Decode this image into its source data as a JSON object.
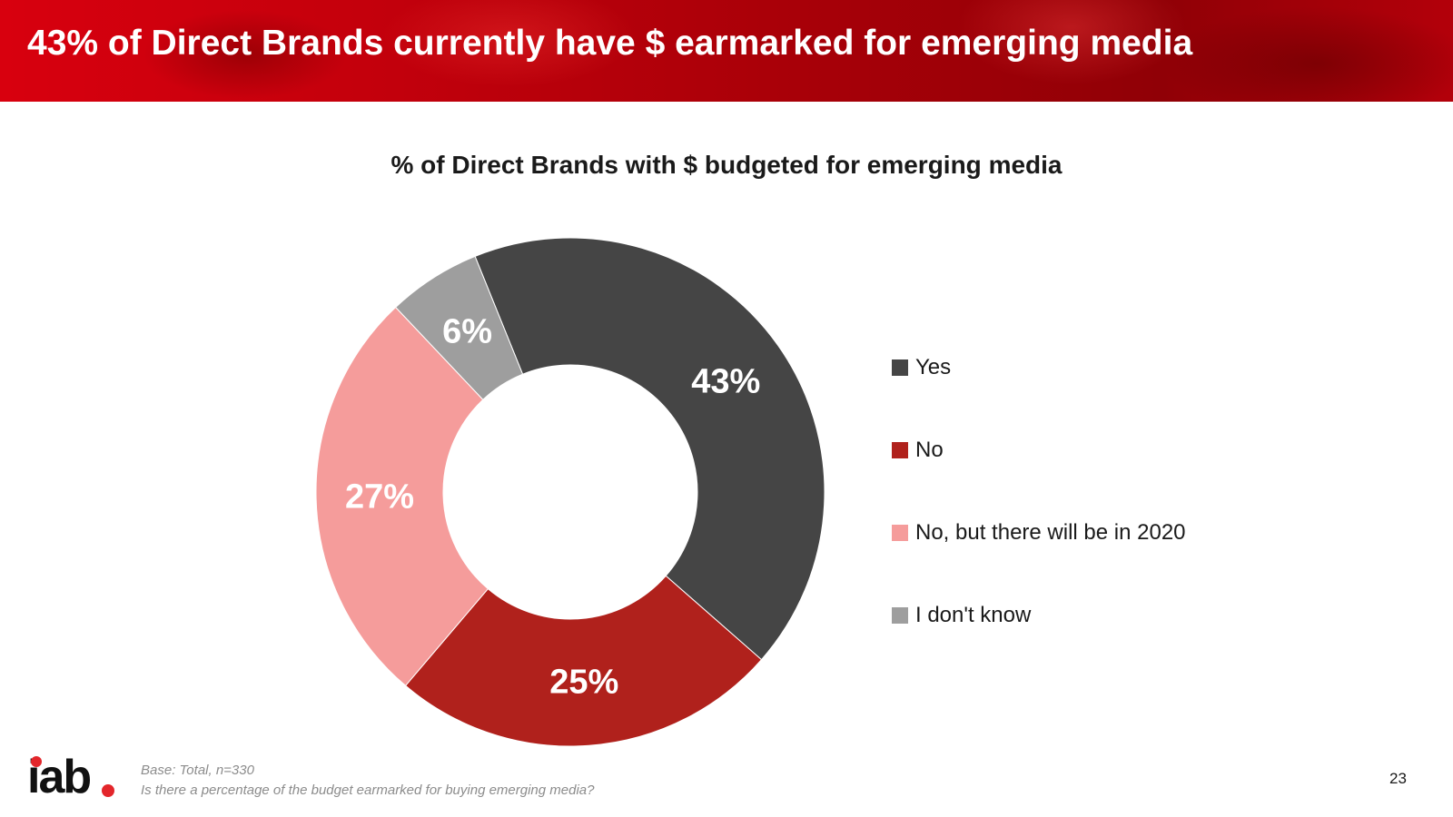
{
  "header": {
    "title": "43% of Direct Brands currently have $ earmarked for emerging media"
  },
  "chart_data": {
    "type": "pie",
    "donut": true,
    "title": "% of Direct Brands with $ budgeted for emerging media",
    "categories": [
      "Yes",
      "No",
      "No, but there will be in 2020",
      "I don't know"
    ],
    "values": [
      43,
      25,
      27,
      6
    ],
    "data_labels": [
      "43%",
      "25%",
      "27%",
      "6%"
    ],
    "colors": [
      "#454545",
      "#b0211c",
      "#f59c9b",
      "#9e9e9e"
    ],
    "legend_position": "right"
  },
  "footer": {
    "base": "Base: Total, n=330",
    "question": "Is there a percentage of the budget earmarked for buying emerging media?",
    "page_number": "23",
    "logo_text": "iab"
  }
}
